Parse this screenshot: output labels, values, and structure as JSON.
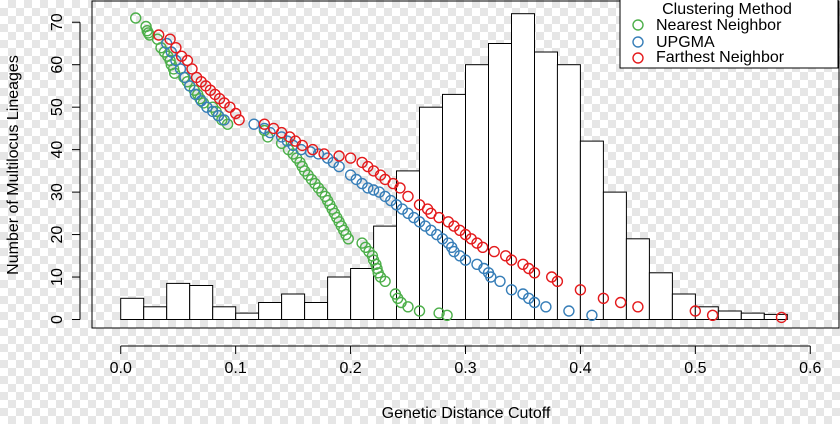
{
  "chart_data": {
    "type": "bar+scatter",
    "title": "",
    "xlabel": "Genetic Distance Cutoff",
    "ylabel": "Number of Multilocus Lineages",
    "xlim": [
      -0.025,
      0.625
    ],
    "ylim": [
      -2,
      75
    ],
    "x_ticks": [
      0.0,
      0.1,
      0.2,
      0.3,
      0.4,
      0.5,
      0.6
    ],
    "x_tick_labels": [
      "0.0",
      "0.1",
      "0.2",
      "0.3",
      "0.4",
      "0.5",
      "0.6"
    ],
    "y_ticks": [
      0,
      10,
      20,
      30,
      40,
      50,
      60,
      70
    ],
    "y_tick_labels": [
      "0",
      "10",
      "20",
      "30",
      "40",
      "50",
      "60",
      "70"
    ],
    "grid": false,
    "histogram": {
      "bin_width": 0.02,
      "bin_start": 0.0,
      "values": [
        5,
        3,
        8.5,
        8,
        3,
        1.5,
        4,
        6,
        4,
        10,
        12,
        22,
        35,
        50,
        53,
        60,
        65,
        72,
        63,
        60,
        42,
        30,
        19,
        11,
        6,
        3,
        2,
        1.5,
        1.2
      ]
    },
    "legend": {
      "title": "Clustering Method",
      "position": "top-right",
      "entries": [
        "Nearest Neighbor",
        "UPGMA",
        "Farthest Neighbor"
      ]
    },
    "series": [
      {
        "name": "Nearest Neighbor",
        "color": "#4daf4a",
        "points": [
          [
            0.013,
            71
          ],
          [
            0.022,
            69
          ],
          [
            0.023,
            68
          ],
          [
            0.024,
            67.5
          ],
          [
            0.025,
            67
          ],
          [
            0.032,
            66
          ],
          [
            0.035,
            64
          ],
          [
            0.038,
            63
          ],
          [
            0.041,
            62
          ],
          [
            0.043,
            61
          ],
          [
            0.044,
            60
          ],
          [
            0.046,
            59
          ],
          [
            0.047,
            58
          ],
          [
            0.055,
            57
          ],
          [
            0.058,
            56
          ],
          [
            0.06,
            55
          ],
          [
            0.064,
            54
          ],
          [
            0.067,
            53
          ],
          [
            0.069,
            52
          ],
          [
            0.072,
            51
          ],
          [
            0.08,
            50
          ],
          [
            0.083,
            49
          ],
          [
            0.085,
            48
          ],
          [
            0.088,
            47
          ],
          [
            0.093,
            46
          ],
          [
            0.125,
            44.5
          ],
          [
            0.128,
            43
          ],
          [
            0.14,
            41.5
          ],
          [
            0.146,
            40
          ],
          [
            0.15,
            39
          ],
          [
            0.153,
            38
          ],
          [
            0.156,
            37
          ],
          [
            0.158,
            36
          ],
          [
            0.16,
            35
          ],
          [
            0.163,
            34
          ],
          [
            0.166,
            33
          ],
          [
            0.169,
            32
          ],
          [
            0.172,
            31
          ],
          [
            0.175,
            30
          ],
          [
            0.178,
            29
          ],
          [
            0.18,
            28
          ],
          [
            0.182,
            27
          ],
          [
            0.184,
            26
          ],
          [
            0.186,
            25
          ],
          [
            0.188,
            24
          ],
          [
            0.19,
            23
          ],
          [
            0.192,
            22
          ],
          [
            0.194,
            21
          ],
          [
            0.196,
            20
          ],
          [
            0.198,
            19
          ],
          [
            0.21,
            18
          ],
          [
            0.213,
            17
          ],
          [
            0.216,
            16
          ],
          [
            0.219,
            15
          ],
          [
            0.22,
            14
          ],
          [
            0.222,
            13
          ],
          [
            0.223,
            12
          ],
          [
            0.224,
            11
          ],
          [
            0.226,
            10
          ],
          [
            0.23,
            9
          ],
          [
            0.239,
            6
          ],
          [
            0.241,
            5
          ],
          [
            0.244,
            4
          ],
          [
            0.25,
            3
          ],
          [
            0.26,
            2
          ],
          [
            0.277,
            1.5
          ],
          [
            0.284,
            1
          ]
        ]
      },
      {
        "name": "UPGMA",
        "color": "#377eb8",
        "points": [
          [
            0.04,
            65
          ],
          [
            0.044,
            63
          ],
          [
            0.048,
            61
          ],
          [
            0.052,
            59
          ],
          [
            0.056,
            57
          ],
          [
            0.06,
            55
          ],
          [
            0.065,
            53
          ],
          [
            0.07,
            51.5
          ],
          [
            0.075,
            50
          ],
          [
            0.08,
            49
          ],
          [
            0.085,
            48
          ],
          [
            0.09,
            47
          ],
          [
            0.116,
            46
          ],
          [
            0.125,
            45
          ],
          [
            0.13,
            44
          ],
          [
            0.14,
            43
          ],
          [
            0.145,
            42
          ],
          [
            0.15,
            41
          ],
          [
            0.157,
            40
          ],
          [
            0.165,
            39.5
          ],
          [
            0.172,
            39
          ],
          [
            0.18,
            38
          ],
          [
            0.185,
            37
          ],
          [
            0.19,
            36
          ],
          [
            0.2,
            34
          ],
          [
            0.205,
            33
          ],
          [
            0.21,
            32
          ],
          [
            0.215,
            31
          ],
          [
            0.22,
            30.5
          ],
          [
            0.225,
            30
          ],
          [
            0.23,
            29
          ],
          [
            0.235,
            28
          ],
          [
            0.24,
            27
          ],
          [
            0.245,
            26
          ],
          [
            0.25,
            25
          ],
          [
            0.255,
            24
          ],
          [
            0.26,
            23
          ],
          [
            0.265,
            22
          ],
          [
            0.27,
            21
          ],
          [
            0.275,
            20
          ],
          [
            0.28,
            19
          ],
          [
            0.285,
            18
          ],
          [
            0.288,
            17
          ],
          [
            0.29,
            16
          ],
          [
            0.295,
            15
          ],
          [
            0.3,
            14
          ],
          [
            0.31,
            13
          ],
          [
            0.316,
            12
          ],
          [
            0.32,
            11
          ],
          [
            0.322,
            10
          ],
          [
            0.33,
            9
          ],
          [
            0.34,
            7
          ],
          [
            0.35,
            6
          ],
          [
            0.355,
            5
          ],
          [
            0.36,
            4
          ],
          [
            0.37,
            3
          ],
          [
            0.39,
            2
          ],
          [
            0.41,
            1
          ]
        ]
      },
      {
        "name": "Farthest Neighbor",
        "color": "#e41a1c",
        "points": [
          [
            0.033,
            67
          ],
          [
            0.043,
            66
          ],
          [
            0.048,
            64
          ],
          [
            0.053,
            62
          ],
          [
            0.058,
            61
          ],
          [
            0.062,
            59
          ],
          [
            0.066,
            57
          ],
          [
            0.07,
            56
          ],
          [
            0.074,
            55
          ],
          [
            0.078,
            54
          ],
          [
            0.082,
            53
          ],
          [
            0.086,
            52
          ],
          [
            0.09,
            51
          ],
          [
            0.095,
            50
          ],
          [
            0.1,
            48.5
          ],
          [
            0.103,
            47
          ],
          [
            0.125,
            46
          ],
          [
            0.133,
            45
          ],
          [
            0.14,
            44
          ],
          [
            0.147,
            43
          ],
          [
            0.152,
            42
          ],
          [
            0.158,
            41
          ],
          [
            0.167,
            40
          ],
          [
            0.177,
            39
          ],
          [
            0.19,
            38.5
          ],
          [
            0.2,
            38
          ],
          [
            0.21,
            37
          ],
          [
            0.215,
            36
          ],
          [
            0.22,
            35
          ],
          [
            0.226,
            34
          ],
          [
            0.23,
            33
          ],
          [
            0.237,
            32
          ],
          [
            0.243,
            31
          ],
          [
            0.25,
            29
          ],
          [
            0.26,
            27
          ],
          [
            0.267,
            26
          ],
          [
            0.27,
            25
          ],
          [
            0.277,
            24
          ],
          [
            0.285,
            23
          ],
          [
            0.29,
            22
          ],
          [
            0.295,
            21
          ],
          [
            0.3,
            20
          ],
          [
            0.305,
            19
          ],
          [
            0.31,
            18
          ],
          [
            0.315,
            17
          ],
          [
            0.325,
            16
          ],
          [
            0.335,
            15
          ],
          [
            0.34,
            14
          ],
          [
            0.35,
            13
          ],
          [
            0.355,
            12
          ],
          [
            0.36,
            11
          ],
          [
            0.375,
            10
          ],
          [
            0.38,
            9
          ],
          [
            0.4,
            7
          ],
          [
            0.42,
            5
          ],
          [
            0.435,
            4
          ],
          [
            0.45,
            3
          ],
          [
            0.5,
            2
          ],
          [
            0.515,
            1
          ],
          [
            0.575,
            0.5
          ]
        ]
      }
    ]
  }
}
